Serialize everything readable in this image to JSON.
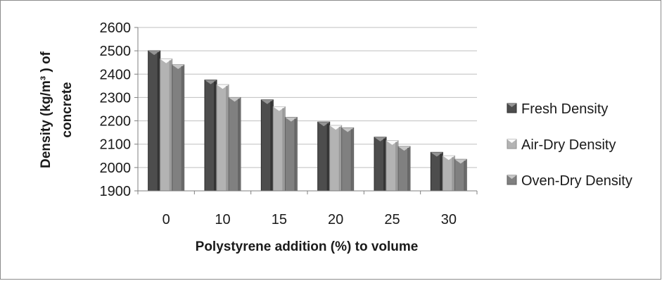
{
  "chart_data": {
    "type": "bar",
    "title": "",
    "xlabel": "Polystyrene addition (%) to volume",
    "ylabel_line1": "Density (kg/m³ )  of",
    "ylabel_line2": "concrete",
    "categories": [
      "0",
      "10",
      "15",
      "20",
      "25",
      "30"
    ],
    "yticks": [
      "1900",
      "2000",
      "2100",
      "2200",
      "2300",
      "2400",
      "2500",
      "2600"
    ],
    "ylim": [
      1900,
      2600
    ],
    "grid": true,
    "legend_position": "right",
    "series": [
      {
        "name": "Fresh Density",
        "values": [
          2500,
          2375,
          2290,
          2195,
          2130,
          2065
        ],
        "color": "#4d4d4d"
      },
      {
        "name": "Air-Dry Density",
        "values": [
          2465,
          2355,
          2260,
          2180,
          2115,
          2050
        ],
        "color": "#b3b3b3"
      },
      {
        "name": "Oven-Dry Density",
        "values": [
          2440,
          2300,
          2215,
          2170,
          2090,
          2035
        ],
        "color": "#808080"
      }
    ]
  }
}
